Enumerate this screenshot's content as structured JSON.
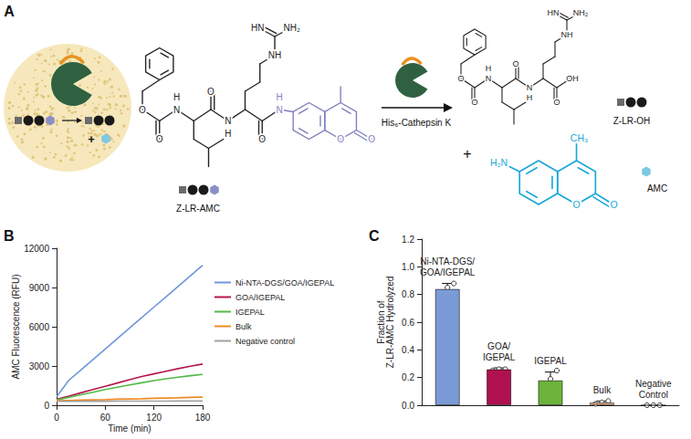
{
  "diagram": {
    "label": "A",
    "substrate": {
      "name": "Z-LR-AMC",
      "atoms": [
        "O",
        "O",
        "N",
        "H",
        "O",
        "N",
        "H",
        "NH",
        "HN",
        "NH₂",
        "O",
        "N",
        "H",
        "O",
        "O"
      ]
    },
    "enzyme": "His₆-Cathepsin K",
    "product": {
      "name": "Z-LR-OH",
      "atoms": [
        "O",
        "O",
        "N",
        "H",
        "O",
        "N",
        "H",
        "NH",
        "HN",
        "NH₂",
        "O",
        "OH"
      ]
    },
    "released": {
      "name": "AMC",
      "atoms": [
        "H₂N",
        "CH₃",
        "O",
        "O"
      ]
    },
    "plus": "+"
  },
  "chart_data": [
    {
      "label": "B",
      "type": "line",
      "x_label": "Time (min)",
      "y_label": "AMC Fluorescence (RFU)",
      "x": [
        0,
        15,
        30,
        45,
        60,
        75,
        90,
        105,
        120,
        135,
        150,
        165,
        180
      ],
      "series": [
        {
          "name": "Ni-NTA-DGS/GOA/IGEPAL",
          "color": "#6f97d9",
          "values": [
            650,
            1900,
            2700,
            3500,
            4300,
            5100,
            5900,
            6700,
            7500,
            8300,
            9100,
            9900,
            10700
          ]
        },
        {
          "name": "GOA/IGEPAL",
          "color": "#b5174b",
          "values": [
            450,
            700,
            950,
            1200,
            1450,
            1700,
            1950,
            2200,
            2400,
            2600,
            2800,
            2980,
            3150
          ]
        },
        {
          "name": "IGEPAL",
          "color": "#52b847",
          "values": [
            400,
            600,
            800,
            1000,
            1200,
            1380,
            1550,
            1720,
            1880,
            2020,
            2150,
            2260,
            2350
          ]
        },
        {
          "name": "Bulk",
          "color": "#f08a24",
          "values": [
            350,
            370,
            390,
            410,
            430,
            460,
            480,
            500,
            530,
            550,
            570,
            600,
            620
          ]
        },
        {
          "name": "Negative control",
          "color": "#a0a0a0",
          "values": [
            300,
            300,
            300,
            305,
            305,
            310,
            310,
            310,
            315,
            315,
            320,
            320,
            320
          ]
        }
      ],
      "xlim": [
        0,
        180
      ],
      "xticks": [
        0,
        60,
        120,
        180
      ],
      "ylim": [
        0,
        12000
      ],
      "yticks": [
        0,
        3000,
        6000,
        9000,
        12000
      ],
      "grid": false,
      "legend": "right"
    },
    {
      "label": "C",
      "type": "bar",
      "y_label": "Fraction of\nZ-LR-AMC Hydrolyzed",
      "categories": [
        "Ni-NTA-DGS/\nGOA/IGEPAL",
        "GOA/\nIGEPAL",
        "IGEPAL",
        "Bulk",
        "Negative\nControl"
      ],
      "values": [
        0.84,
        0.26,
        0.18,
        0.02,
        0
      ],
      "errors": [
        0.04,
        0.01,
        0.06,
        0.01,
        0
      ],
      "points": [
        [
          0.81,
          0.85,
          0.88
        ],
        [
          0.25,
          0.26,
          0.26
        ],
        [
          0.12,
          0.19,
          0.25
        ],
        [
          0.01,
          0.02,
          0.03
        ],
        [
          0,
          0,
          0
        ]
      ],
      "colors": [
        "#7b9bd6",
        "#b0104f",
        "#6bb33a",
        "#f5b88a",
        "#b0b0b0"
      ],
      "ylim": [
        0,
        1.2
      ],
      "yticks": [
        {
          "value": 0,
          "label": "0.0"
        },
        0.2,
        0.4,
        0.6,
        0.8,
        {
          "value": 1,
          "label": "1.0"
        },
        1.2
      ],
      "grid": false,
      "tick_labels": "y"
    }
  ]
}
